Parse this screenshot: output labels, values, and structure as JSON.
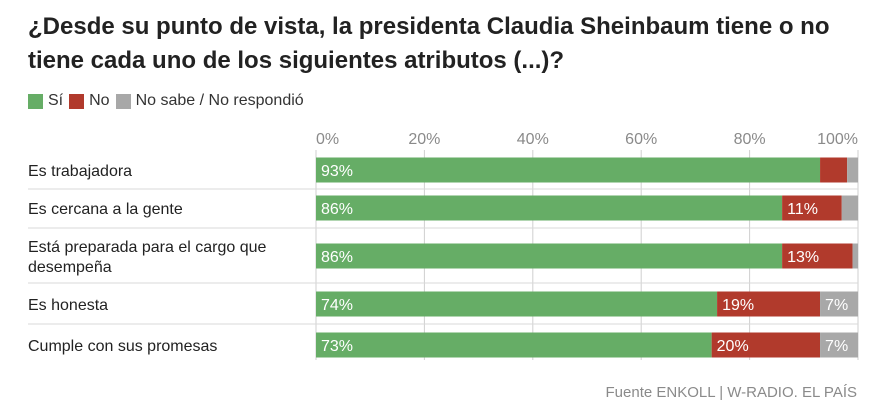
{
  "title": "¿Desde su punto de vista, la presidenta Claudia Sheinbaum tiene o no tiene cada uno de los siguientes atributos (...)?",
  "source": "Fuente ENKOLL | W-RADIO. EL PAÍS",
  "colors": {
    "si": "#66ad66",
    "no": "#b13a2c",
    "ns": "#a8a8a8",
    "grid": "#cfcfcf",
    "tick": "#8a8a8a",
    "separator": "#d9d9d9"
  },
  "chart_data": {
    "type": "bar",
    "orientation": "horizontal",
    "stacked": true,
    "title": "¿Desde su punto de vista, la presidenta Claudia Sheinbaum tiene o no tiene cada uno de los siguientes atributos (...)?",
    "categories": [
      [
        "Es trabajadora"
      ],
      [
        "Es cercana a la gente"
      ],
      [
        "Está preparada para el cargo que",
        "desempeña"
      ],
      [
        "Es honesta"
      ],
      [
        "Cumple con sus promesas"
      ]
    ],
    "series": [
      {
        "name": "Sí",
        "key": "si",
        "values": [
          93,
          86,
          86,
          74,
          73
        ],
        "labels": [
          "93%",
          "86%",
          "86%",
          "74%",
          "73%"
        ]
      },
      {
        "name": "No",
        "key": "no",
        "values": [
          5,
          11,
          13,
          19,
          20
        ],
        "labels": [
          "",
          "11%",
          "13%",
          "19%",
          "20%"
        ]
      },
      {
        "name": "No sabe / No respondió",
        "key": "ns",
        "values": [
          2,
          3,
          1,
          7,
          7
        ],
        "labels": [
          "",
          "",
          "",
          "7%",
          "7%"
        ]
      }
    ],
    "xlim": [
      0,
      100
    ],
    "xticks": [
      "0%",
      "20%",
      "40%",
      "60%",
      "80%",
      "100%"
    ],
    "grid": true,
    "legend_position": "top-left"
  }
}
